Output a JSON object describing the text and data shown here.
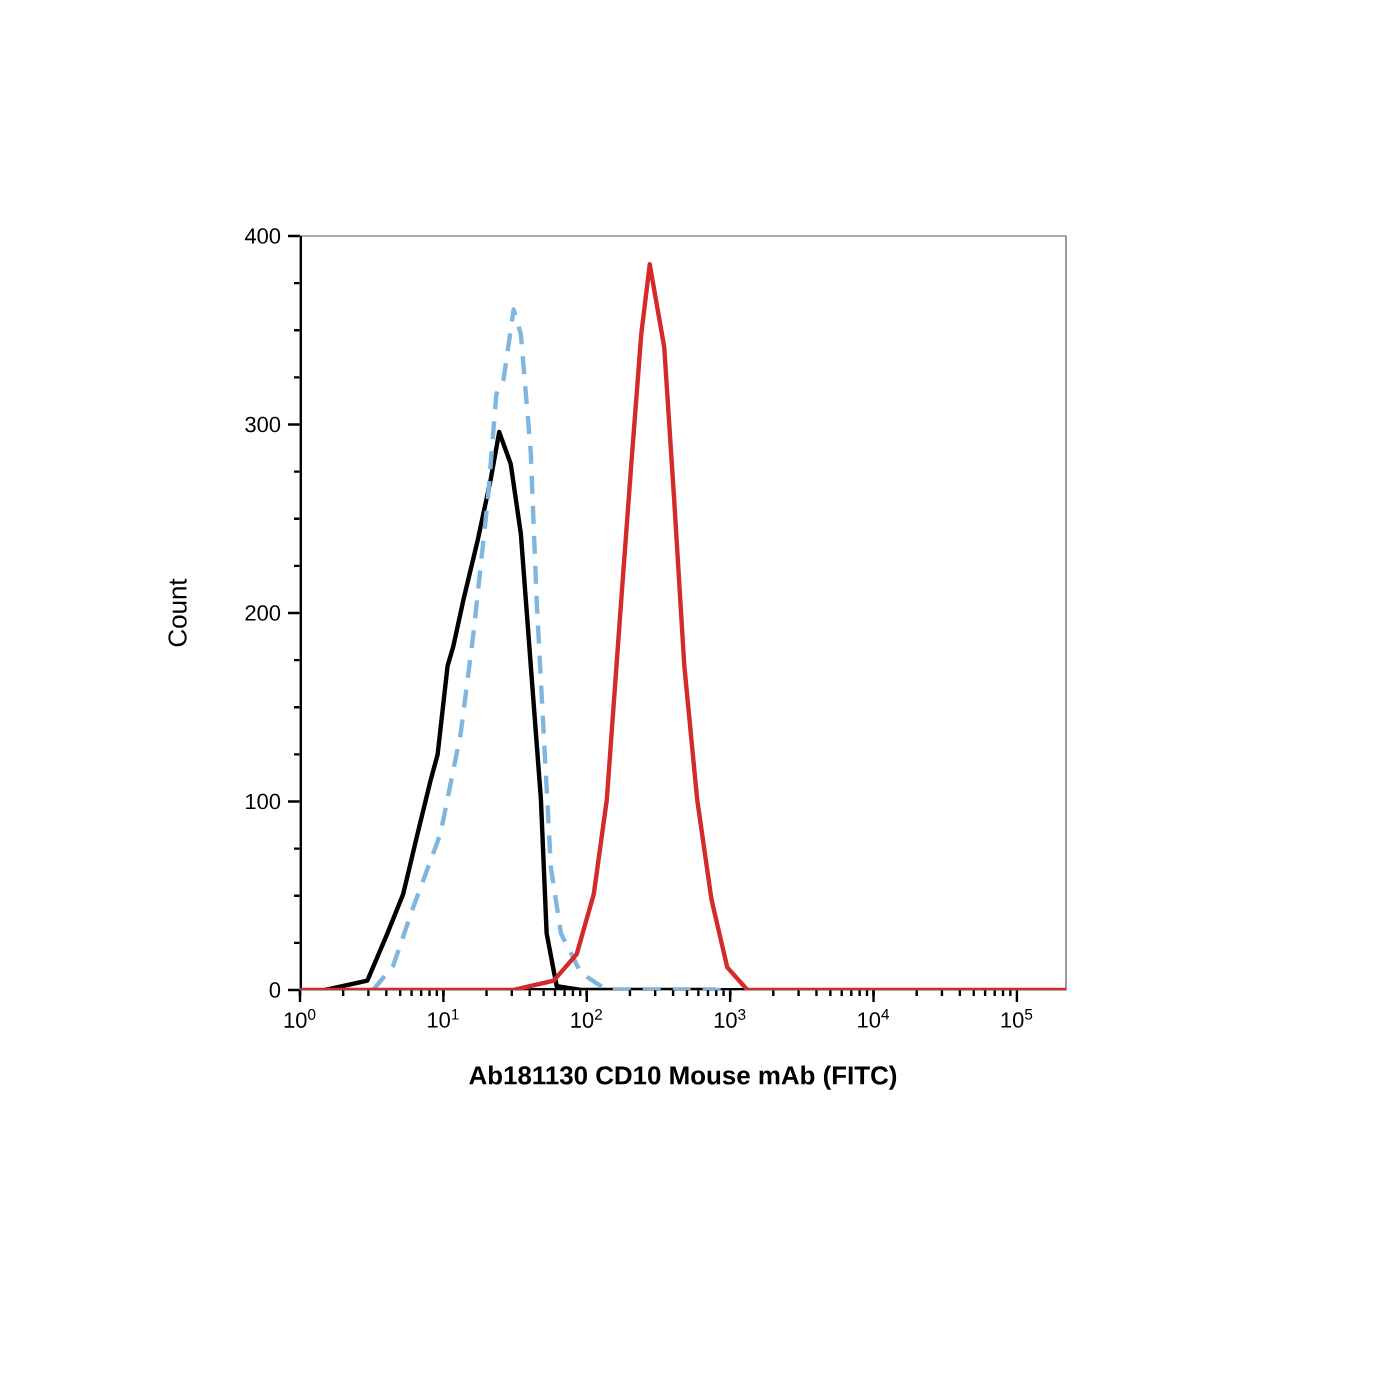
{
  "chart_data": {
    "type": "line",
    "xlabel": "Ab181130 CD10 Mouse mAb (FITC)",
    "ylabel": "Count",
    "log": "x",
    "xlim": [
      1,
      220000
    ],
    "ylim": [
      0,
      400
    ],
    "xticks": [
      {
        "value": 1,
        "label": "10$^{0}$"
      },
      {
        "value": 10,
        "label": "10$^{1}$"
      },
      {
        "value": 100,
        "label": "10$^{2}$"
      },
      {
        "value": 1000,
        "label": "10$^{3}$"
      },
      {
        "value": 10000,
        "label": "10$^{4}$"
      },
      {
        "value": 100000,
        "label": "10$^{5}$"
      }
    ],
    "yticks": [
      0,
      100,
      200,
      300,
      400
    ],
    "grid": false,
    "marker": "none",
    "series": [
      {
        "color": "#000000",
        "line_style": "solid",
        "x": [
          1.5,
          2.95,
          4.07,
          5.25,
          6.61,
          8.13,
          9.12,
          10.7,
          11.7,
          13.8,
          17.4,
          21.4,
          24.5,
          29.5,
          34.7,
          40.7,
          47.9,
          52.5,
          61.7,
          91.2,
          794
        ],
        "values": [
          0,
          5,
          30,
          51,
          83,
          111,
          125,
          172,
          182,
          207,
          239,
          271,
          296,
          279,
          242,
          172,
          101,
          30,
          2,
          0,
          0
        ]
      },
      {
        "color": "#7fb6e0",
        "line_style": "dashed",
        "x": [
          3.24,
          4.47,
          6.17,
          9.55,
          13.2,
          16.2,
          20.4,
          23.4,
          26.3,
          30.9,
          34.7,
          40.7,
          44.7,
          50.1,
          56.2,
          66.1,
          91.2,
          138,
          955
        ],
        "values": [
          0,
          13,
          44,
          83,
          136,
          189,
          260,
          316,
          324,
          361,
          348,
          285,
          207,
          136,
          65,
          30,
          9,
          0,
          0
        ]
      },
      {
        "color": "#d42a2a",
        "line_style": "solid",
        "x": [
          1,
          30.9,
          58.9,
          85.1,
          112,
          138,
          174,
          204,
          240,
          275,
          347,
          407,
          479,
          589,
          741,
          955,
          1320,
          220000
        ],
        "values": [
          0,
          0,
          5,
          19,
          51,
          101,
          207,
          278,
          348,
          385,
          341,
          260,
          172,
          101,
          48,
          12,
          0,
          0
        ]
      }
    ]
  }
}
